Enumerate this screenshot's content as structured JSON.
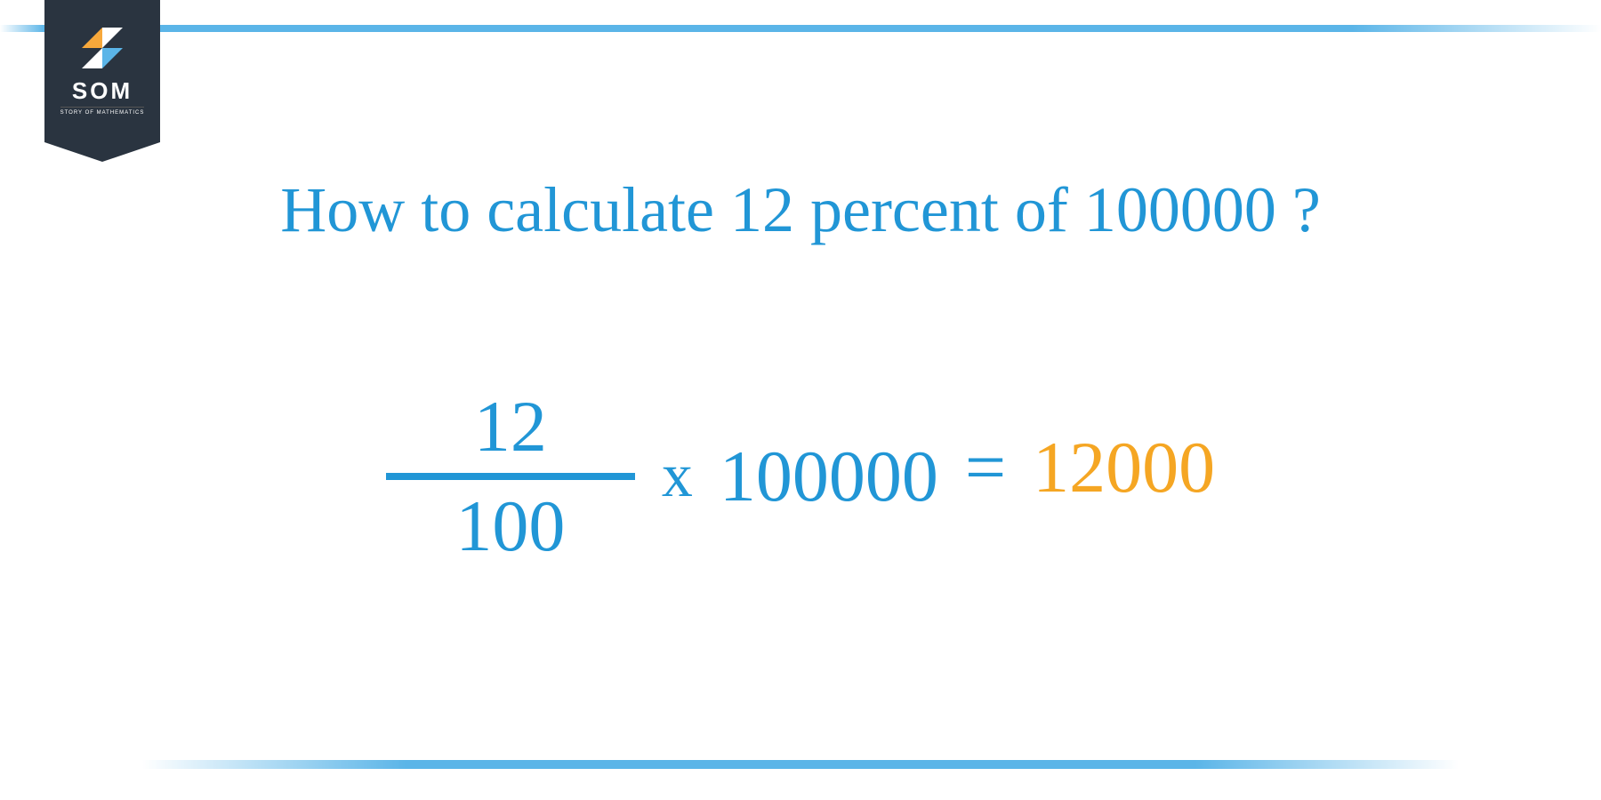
{
  "badge": {
    "title": "SOM",
    "subtitle": "STORY OF MATHEMATICS",
    "bg_color": "#2a3440",
    "icon_colors": {
      "tl": "#f7a83b",
      "tr": "#ffffff",
      "bl": "#ffffff",
      "br": "#5bb5e8"
    }
  },
  "heading": {
    "text": "How to calculate 12 percent of 100000 ?",
    "color": "#2196d6",
    "fontsize": 72
  },
  "equation": {
    "numerator": "12",
    "denominator": "100",
    "times_symbol": "x",
    "multiplicand": "100000",
    "equals_symbol": "=",
    "result": "12000",
    "primary_color": "#2196d6",
    "result_color": "#f5a623",
    "fontsize": 82
  },
  "bars": {
    "color": "#5bb5e8"
  }
}
